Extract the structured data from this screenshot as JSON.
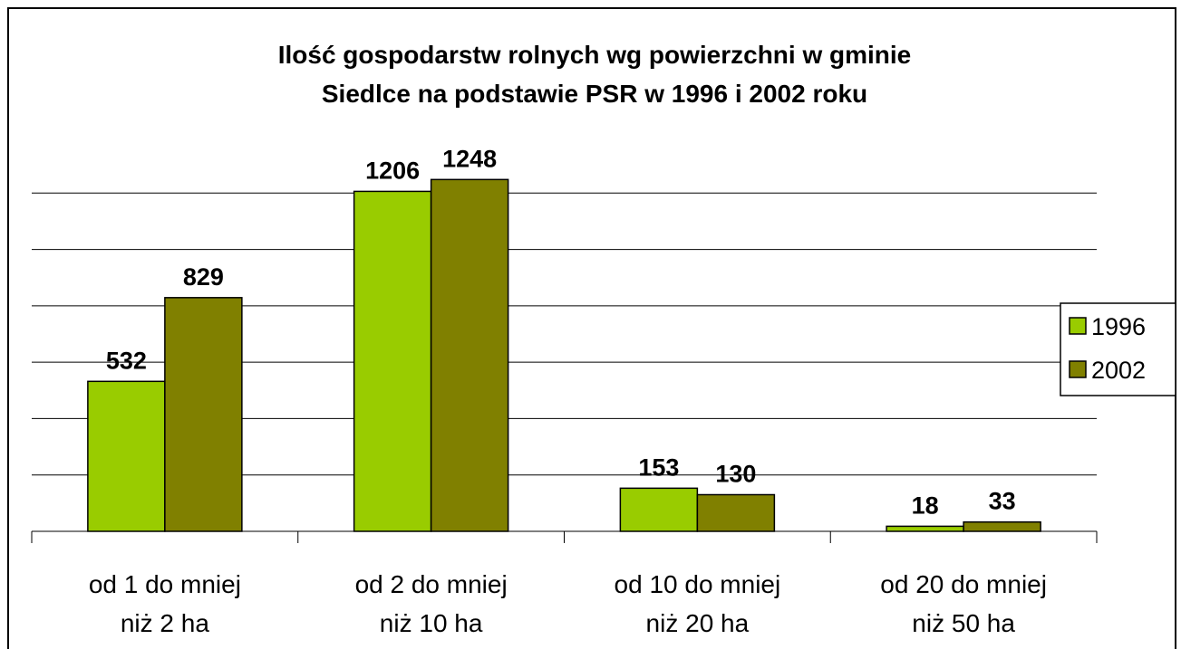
{
  "chart_data": {
    "type": "bar",
    "title": "Ilość gospodarstw rolnych wg powierzchni w gminie\nSiedlce na podstawie PSR w 1996 i 2002 roku",
    "categories": [
      "od 1 do mniej\nniż 2 ha",
      "od 2 do mniej\nniż 10 ha",
      "od 10 do mniej\nniż 20 ha",
      "od 20 do mniej\nniż 50 ha"
    ],
    "series": [
      {
        "name": "1996",
        "color": "#99cc00",
        "values": [
          532,
          1206,
          153,
          18
        ]
      },
      {
        "name": "2002",
        "color": "#808000",
        "values": [
          829,
          1248,
          130,
          33
        ]
      }
    ],
    "ylim": [
      0,
      1400
    ],
    "yticks": [
      0,
      200,
      400,
      600,
      800,
      1000,
      1200
    ],
    "grid": true,
    "legend": "right"
  }
}
